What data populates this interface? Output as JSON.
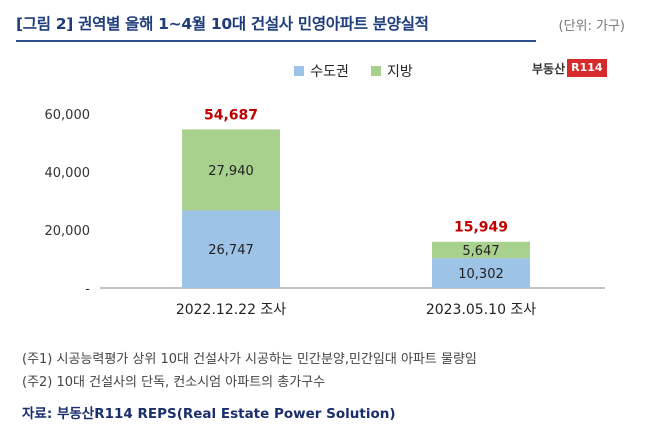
{
  "header": {
    "title": "[그림 2] 권역별 올해 1~4월 10대 건설사 민영아파트 분양실적",
    "unit": "(단위: 가구)"
  },
  "logo": {
    "text": "부동산",
    "badge": "R114"
  },
  "colors": {
    "metro": "#9dc3e6",
    "regional": "#a9d18e",
    "total_label": "#c00000",
    "axis": "#888888"
  },
  "chart_data": {
    "type": "bar",
    "stacked": true,
    "categories": [
      "2022.12.22  조사",
      "2023.05.10  조사"
    ],
    "series": [
      {
        "name": "수도권",
        "values": [
          26747,
          10302
        ],
        "labels": [
          "26,747",
          "10,302"
        ]
      },
      {
        "name": "지방",
        "values": [
          27940,
          5647
        ],
        "labels": [
          "27,940",
          "5,647"
        ]
      }
    ],
    "totals": [
      54687,
      15949
    ],
    "total_labels": [
      "54,687",
      "15,949"
    ],
    "ylim": [
      0,
      60000
    ],
    "yticks": [
      0,
      20000,
      40000,
      60000
    ],
    "ytick_labels": [
      "-",
      "20,000",
      "40,000",
      "60,000"
    ],
    "legend_position": "top",
    "grid": false
  },
  "notes": [
    "(주1) 시공능력평가 상위 10대 건설사가 시공하는 민간분양,민간임대 아파트 물량임",
    "(주2) 10대 건설사의 단독, 컨소시엄 아파트의 총가구수"
  ],
  "source": "자료: 부동산R114 REPS(Real Estate Power Solution)"
}
